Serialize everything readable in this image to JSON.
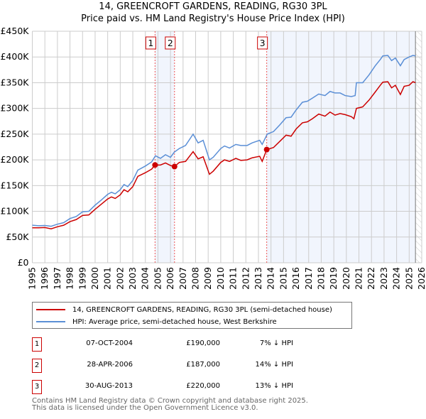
{
  "chart_data": {
    "type": "line",
    "title": "14, GREENCROFT GARDENS, READING, RG30 3PL",
    "subtitle": "Price paid vs. HM Land Registry's House Price Index (HPI)",
    "xlim": [
      1995,
      2026
    ],
    "ylim": [
      0,
      450000
    ],
    "x_ticks": [
      "1995",
      "1996",
      "1997",
      "1998",
      "1999",
      "2000",
      "2001",
      "2002",
      "2003",
      "2004",
      "2005",
      "2006",
      "2007",
      "2008",
      "2009",
      "2010",
      "2011",
      "2012",
      "2013",
      "2014",
      "2015",
      "2016",
      "2017",
      "2018",
      "2019",
      "2020",
      "2021",
      "2022",
      "2023",
      "2024",
      "2025",
      "2026"
    ],
    "y_ticks": [
      "£0",
      "£50K",
      "£100K",
      "£150K",
      "£200K",
      "£250K",
      "£300K",
      "£350K",
      "£400K",
      "£450K"
    ],
    "grid": true,
    "series": [
      {
        "name": "14, GREENCROFT GARDENS, READING, RG30 3PL (semi-detached house)",
        "color": "#cc0000",
        "points": [
          [
            1995,
            68
          ],
          [
            1995.5,
            68
          ],
          [
            1996,
            68.5
          ],
          [
            1996.5,
            66
          ],
          [
            1997,
            70
          ],
          [
            1997.5,
            73
          ],
          [
            1998,
            80
          ],
          [
            1998.5,
            84
          ],
          [
            1999,
            92
          ],
          [
            1999.5,
            93
          ],
          [
            2000,
            104
          ],
          [
            2000.5,
            114
          ],
          [
            2001,
            124
          ],
          [
            2001.3,
            128
          ],
          [
            2001.6,
            125
          ],
          [
            2002,
            132
          ],
          [
            2002.3,
            142
          ],
          [
            2002.6,
            138
          ],
          [
            2003,
            148
          ],
          [
            2003.4,
            168
          ],
          [
            2004,
            175
          ],
          [
            2004.5,
            182
          ],
          [
            2004.77,
            190
          ],
          [
            2005.2,
            190
          ],
          [
            2005.6,
            194
          ],
          [
            2006,
            189
          ],
          [
            2006.32,
            187
          ],
          [
            2006.7,
            195
          ],
          [
            2007.2,
            197
          ],
          [
            2007.8,
            216
          ],
          [
            2008.2,
            202
          ],
          [
            2008.6,
            206
          ],
          [
            2009.1,
            172
          ],
          [
            2009.4,
            178
          ],
          [
            2010,
            195
          ],
          [
            2010.3,
            200
          ],
          [
            2010.7,
            197
          ],
          [
            2011.2,
            203
          ],
          [
            2011.6,
            199
          ],
          [
            2012.1,
            200
          ],
          [
            2012.5,
            204
          ],
          [
            2013.1,
            207
          ],
          [
            2013.3,
            197
          ],
          [
            2013.66,
            220
          ],
          [
            2014.2,
            224
          ],
          [
            2014.7,
            236
          ],
          [
            2015.2,
            248
          ],
          [
            2015.6,
            246
          ],
          [
            2016,
            260
          ],
          [
            2016.5,
            272
          ],
          [
            2016.9,
            274
          ],
          [
            2017.3,
            280
          ],
          [
            2017.8,
            289
          ],
          [
            2018.3,
            285
          ],
          [
            2018.7,
            293
          ],
          [
            2019.1,
            287
          ],
          [
            2019.5,
            290
          ],
          [
            2019.9,
            288
          ],
          [
            2020.4,
            284
          ],
          [
            2020.6,
            280
          ],
          [
            2020.8,
            300
          ],
          [
            2021.3,
            303
          ],
          [
            2021.8,
            316
          ],
          [
            2022.3,
            332
          ],
          [
            2022.7,
            345
          ],
          [
            2022.9,
            351
          ],
          [
            2023.3,
            352
          ],
          [
            2023.6,
            340
          ],
          [
            2023.9,
            345
          ],
          [
            2024.3,
            327
          ],
          [
            2024.6,
            343
          ],
          [
            2025,
            345
          ],
          [
            2025.3,
            352
          ],
          [
            2025.5,
            350
          ]
        ]
      },
      {
        "name": "HPI: Average price, semi-detached house, West Berkshire",
        "color": "#5b8fd6",
        "points": [
          [
            1995,
            73
          ],
          [
            1995.5,
            72
          ],
          [
            1996,
            72.5
          ],
          [
            1996.5,
            71
          ],
          [
            1997,
            75
          ],
          [
            1997.5,
            78
          ],
          [
            1998,
            86
          ],
          [
            1998.5,
            90
          ],
          [
            1999,
            99
          ],
          [
            1999.5,
            100
          ],
          [
            2000,
            112
          ],
          [
            2000.5,
            122
          ],
          [
            2001,
            133
          ],
          [
            2001.3,
            137
          ],
          [
            2001.6,
            134
          ],
          [
            2002,
            142
          ],
          [
            2002.3,
            152
          ],
          [
            2002.6,
            148
          ],
          [
            2003,
            160
          ],
          [
            2003.4,
            180
          ],
          [
            2004,
            188
          ],
          [
            2004.5,
            196
          ],
          [
            2004.8,
            208
          ],
          [
            2005.2,
            203
          ],
          [
            2005.6,
            210
          ],
          [
            2006,
            205
          ],
          [
            2006.3,
            215
          ],
          [
            2006.7,
            222
          ],
          [
            2007.2,
            228
          ],
          [
            2007.8,
            250
          ],
          [
            2008.2,
            233
          ],
          [
            2008.6,
            238
          ],
          [
            2009.1,
            200
          ],
          [
            2009.4,
            205
          ],
          [
            2010,
            222
          ],
          [
            2010.3,
            227
          ],
          [
            2010.7,
            223
          ],
          [
            2011.2,
            230
          ],
          [
            2011.6,
            228
          ],
          [
            2012.1,
            228
          ],
          [
            2012.5,
            233
          ],
          [
            2013.1,
            238
          ],
          [
            2013.3,
            230
          ],
          [
            2013.7,
            250
          ],
          [
            2014.2,
            255
          ],
          [
            2014.7,
            268
          ],
          [
            2015.2,
            282
          ],
          [
            2015.6,
            283
          ],
          [
            2016,
            297
          ],
          [
            2016.5,
            312
          ],
          [
            2016.9,
            314
          ],
          [
            2017.3,
            320
          ],
          [
            2017.8,
            328
          ],
          [
            2018.3,
            325
          ],
          [
            2018.7,
            333
          ],
          [
            2019.1,
            330
          ],
          [
            2019.5,
            330
          ],
          [
            2019.9,
            325
          ],
          [
            2020.4,
            323
          ],
          [
            2020.7,
            325
          ],
          [
            2020.8,
            350
          ],
          [
            2021.3,
            350
          ],
          [
            2021.8,
            365
          ],
          [
            2022.3,
            383
          ],
          [
            2022.7,
            395
          ],
          [
            2022.9,
            402
          ],
          [
            2023.3,
            403
          ],
          [
            2023.6,
            393
          ],
          [
            2023.9,
            398
          ],
          [
            2024.3,
            383
          ],
          [
            2024.6,
            395
          ],
          [
            2025,
            400
          ],
          [
            2025.3,
            403
          ],
          [
            2025.5,
            402
          ]
        ]
      }
    ],
    "sales": [
      {
        "label": "1",
        "year": 2004.77,
        "price": 190000,
        "date": "07-OCT-2004",
        "price_text": "£190,000",
        "hpi_text": "7% ↓ HPI"
      },
      {
        "label": "2",
        "year": 2006.32,
        "price": 187000,
        "date": "28-APR-2006",
        "price_text": "£187,000",
        "hpi_text": "14% ↓ HPI"
      },
      {
        "label": "3",
        "year": 2013.66,
        "price": 220000,
        "date": "30-AUG-2013",
        "price_text": "£220,000",
        "hpi_text": "13% ↓ HPI"
      }
    ],
    "shaded_ranges": [
      [
        2004.77,
        2006.32
      ],
      [
        2013.66,
        2025.5
      ]
    ],
    "data_end": 2025.5
  },
  "legend": {
    "property": "14, GREENCROFT GARDENS, READING, RG30 3PL (semi-detached house)",
    "hpi": "HPI: Average price, semi-detached house, West Berkshire"
  },
  "footer": {
    "line1": "Contains HM Land Registry data © Crown copyright and database right 2025.",
    "line2": "This data is licensed under the Open Government Licence v3.0."
  }
}
